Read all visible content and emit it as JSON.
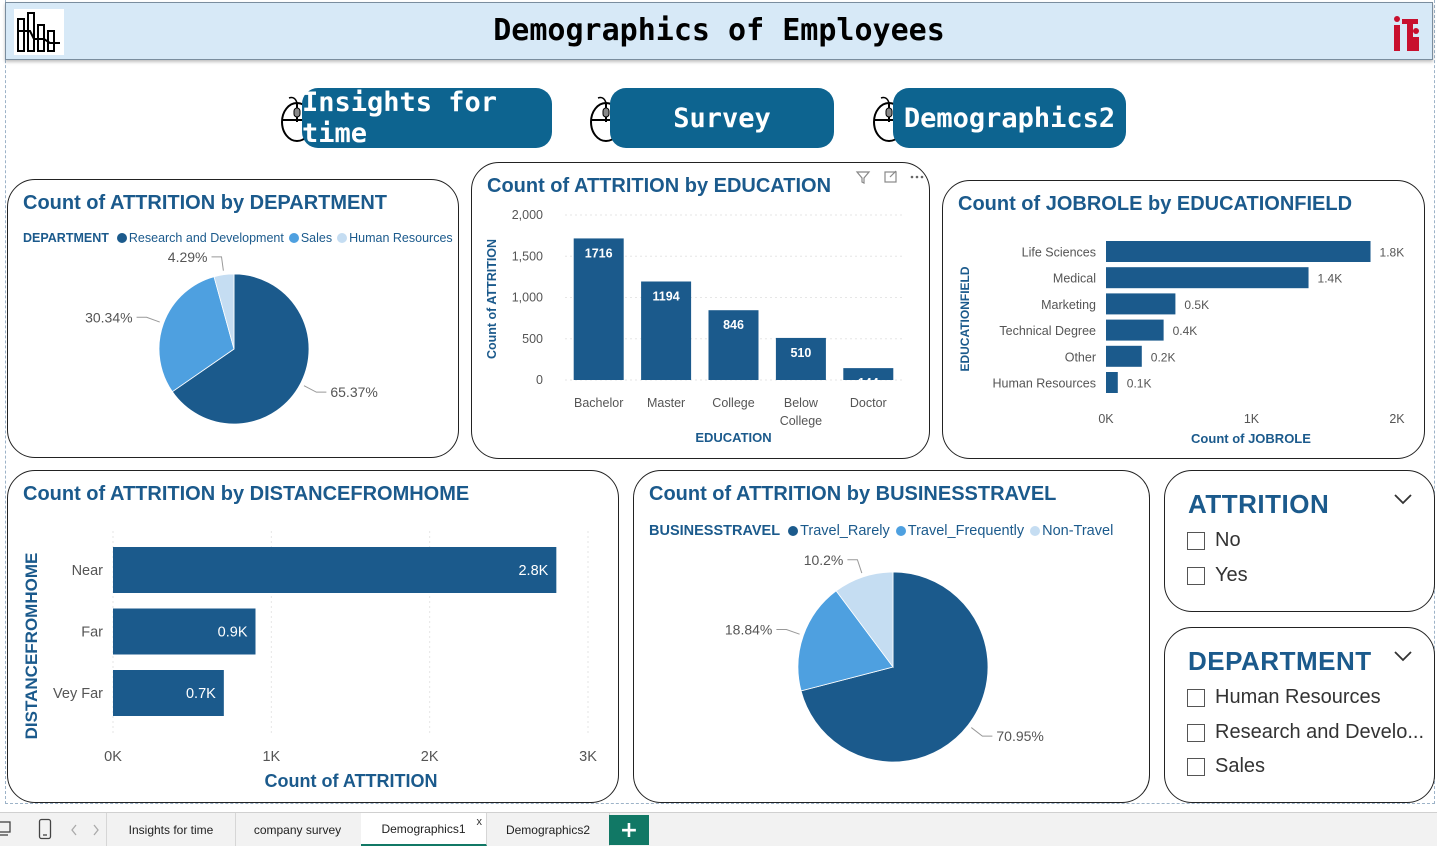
{
  "header": {
    "title": "Demographics of Employees",
    "left_logo_icon": "hourglass-chart-icon",
    "right_logo_icon": "iti-logo-icon"
  },
  "nav": [
    {
      "label": "Insights for time",
      "icon": "computer-mouse-icon"
    },
    {
      "label": "Survey",
      "icon": "computer-mouse-icon"
    },
    {
      "label": "Demographics2",
      "icon": "computer-mouse-icon"
    }
  ],
  "colors": {
    "primary": "#1b5a8c",
    "series_dark": "#1b5a8c",
    "series_mid": "#4ea0e0",
    "series_light": "#c5ddf2",
    "nav_button": "#0d6490",
    "title_bg": "#d7e9f7",
    "tab_accent": "#117865"
  },
  "chart_data": [
    {
      "id": "attrition_by_department",
      "type": "pie",
      "title": "Count of ATTRITION by DEPARTMENT",
      "legend_title": "DEPARTMENT",
      "legend_placement": "top-left",
      "labels": [
        "Research and Development",
        "Sales",
        "Human Resources"
      ],
      "values": [
        65.37,
        30.34,
        4.29
      ],
      "value_labels": [
        "65.37%",
        "30.34%",
        "4.29%"
      ]
    },
    {
      "id": "attrition_by_education",
      "type": "bar",
      "title": "Count of ATTRITION by EDUCATION",
      "xlabel": "EDUCATION",
      "ylabel": "Count of ATTRITION",
      "categories": [
        "Bachelor",
        "Master",
        "College",
        "Below College",
        "Doctor"
      ],
      "values": [
        1716,
        1194,
        846,
        510,
        144
      ],
      "ylim": [
        0,
        2000
      ],
      "yticks": [
        "0",
        "500",
        "1,000",
        "1,500",
        "2,000"
      ],
      "grid": true
    },
    {
      "id": "jobrole_by_educationfield",
      "type": "bar",
      "orientation": "horizontal",
      "title": "Count of JOBROLE by EDUCATIONFIELD",
      "xlabel": "Count of JOBROLE",
      "ylabel": "EDUCATIONFIELD",
      "categories": [
        "Life Sciences",
        "Medical",
        "Marketing",
        "Technical Degree",
        "Other",
        "Human Resources"
      ],
      "values": [
        1818,
        1392,
        477,
        396,
        246,
        81
      ],
      "value_labels": [
        "1.8K",
        "1.4K",
        "0.5K",
        "0.4K",
        "0.2K",
        "0.1K"
      ],
      "xlim": [
        0,
        2000
      ],
      "xticks": [
        "0K",
        "1K",
        "2K"
      ]
    },
    {
      "id": "attrition_by_distancefromhome",
      "type": "bar",
      "orientation": "horizontal",
      "title": "Count of ATTRITION by DISTANCEFROMHOME",
      "xlabel": "Count of ATTRITION",
      "ylabel": "DISTANCEFROMHOME",
      "categories": [
        "Near",
        "Far",
        "Vey Far"
      ],
      "values": [
        2800,
        900,
        700
      ],
      "value_labels": [
        "2.8K",
        "0.9K",
        "0.7K"
      ],
      "xlim": [
        0,
        3000
      ],
      "xticks": [
        "0K",
        "1K",
        "2K",
        "3K"
      ],
      "grid": true
    },
    {
      "id": "attrition_by_businesstravel",
      "type": "pie",
      "title": "Count of ATTRITION by BUSINESSTRAVEL",
      "legend_title": "BUSINESSTRAVEL",
      "legend_placement": "top-left",
      "labels": [
        "Travel_Rarely",
        "Travel_Frequently",
        "Non-Travel"
      ],
      "values": [
        70.95,
        18.84,
        10.2
      ],
      "value_labels": [
        "70.95%",
        "18.84%",
        "10.2%"
      ]
    }
  ],
  "slicers": {
    "attrition": {
      "title": "ATTRITION",
      "options": [
        "No",
        "Yes"
      ]
    },
    "department": {
      "title": "DEPARTMENT",
      "options": [
        "Human Resources",
        "Research and Develo...",
        "Sales"
      ]
    }
  },
  "tabs": [
    {
      "label": "Insights for time"
    },
    {
      "label": "company survey"
    },
    {
      "label": "Demographics1",
      "active": true
    },
    {
      "label": "Demographics2"
    }
  ],
  "tab_close_glyph": "x",
  "add_tab_glyph": "+"
}
